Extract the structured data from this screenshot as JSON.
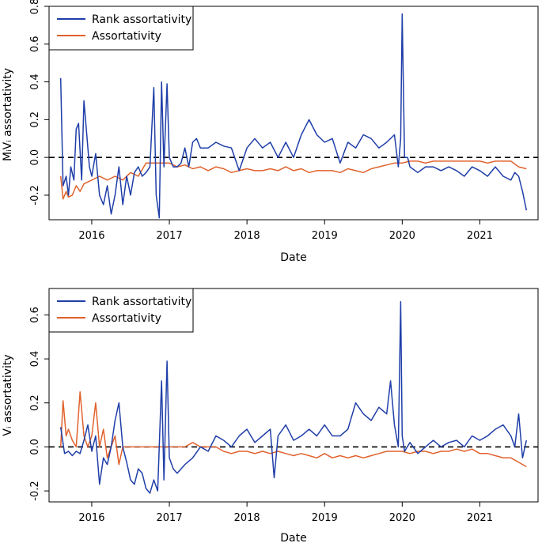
{
  "colors": {
    "rank": "#1f3ea8",
    "assort": "#e0622d",
    "zero_line": "#000000"
  },
  "chart_data": [
    {
      "type": "line",
      "xlabel": "Date",
      "ylabel": "MᵢVᵢ assortativity",
      "xticks": [
        "2016",
        "2017",
        "2018",
        "2019",
        "2020",
        "2021"
      ],
      "xtick_values": [
        2016.0,
        2017.0,
        2018.0,
        2019.0,
        2020.0,
        2021.0
      ],
      "yticks": [
        -0.2,
        0.0,
        0.2,
        0.4,
        0.6,
        0.8
      ],
      "ytick_labels": [
        "-0.2",
        "0.0",
        "0.2",
        "0.4",
        "0.6",
        "0.8"
      ],
      "xlim": [
        2015.45,
        2021.75
      ],
      "ylim": [
        -0.33,
        0.8
      ],
      "reference_line": 0,
      "legend_position": "top-left",
      "series": [
        {
          "name": "Rank assortativity",
          "x": [
            2015.6,
            2015.63,
            2015.67,
            2015.7,
            2015.73,
            2015.77,
            2015.8,
            2015.83,
            2015.87,
            2015.9,
            2015.93,
            2015.97,
            2016.0,
            2016.05,
            2016.1,
            2016.15,
            2016.2,
            2016.25,
            2016.3,
            2016.35,
            2016.4,
            2016.45,
            2016.5,
            2016.55,
            2016.6,
            2016.65,
            2016.7,
            2016.75,
            2016.8,
            2016.83,
            2016.87,
            2016.9,
            2016.93,
            2016.97,
            2017.0,
            2017.05,
            2017.1,
            2017.15,
            2017.2,
            2017.25,
            2017.3,
            2017.35,
            2017.4,
            2017.5,
            2017.6,
            2017.7,
            2017.8,
            2017.9,
            2018.0,
            2018.1,
            2018.2,
            2018.3,
            2018.4,
            2018.5,
            2018.6,
            2018.7,
            2018.8,
            2018.9,
            2019.0,
            2019.1,
            2019.2,
            2019.3,
            2019.4,
            2019.5,
            2019.6,
            2019.7,
            2019.8,
            2019.9,
            2019.95,
            2019.98,
            2020.0,
            2020.03,
            2020.07,
            2020.1,
            2020.2,
            2020.3,
            2020.4,
            2020.5,
            2020.6,
            2020.7,
            2020.8,
            2020.9,
            2021.0,
            2021.1,
            2021.2,
            2021.3,
            2021.4,
            2021.45,
            2021.5,
            2021.55,
            2021.6
          ],
          "y": [
            0.42,
            -0.15,
            -0.1,
            -0.2,
            -0.05,
            -0.12,
            0.15,
            0.18,
            -0.12,
            0.3,
            0.15,
            -0.05,
            -0.1,
            0.02,
            -0.2,
            -0.25,
            -0.15,
            -0.3,
            -0.2,
            -0.05,
            -0.25,
            -0.1,
            -0.2,
            -0.08,
            -0.05,
            -0.1,
            -0.08,
            -0.05,
            0.37,
            -0.2,
            -0.32,
            0.4,
            -0.05,
            0.39,
            0.0,
            -0.05,
            -0.05,
            -0.03,
            0.05,
            -0.05,
            0.08,
            0.1,
            0.05,
            0.05,
            0.08,
            0.06,
            0.05,
            -0.07,
            0.05,
            0.1,
            0.05,
            0.08,
            0.0,
            0.08,
            0.0,
            0.12,
            0.2,
            0.12,
            0.08,
            0.1,
            -0.03,
            0.08,
            0.05,
            0.12,
            0.1,
            0.05,
            0.08,
            0.12,
            -0.05,
            0.1,
            0.76,
            0.0,
            0.0,
            -0.05,
            -0.08,
            -0.05,
            -0.05,
            -0.07,
            -0.05,
            -0.07,
            -0.1,
            -0.05,
            -0.07,
            -0.1,
            -0.05,
            -0.1,
            -0.12,
            -0.08,
            -0.1,
            -0.18,
            -0.28
          ]
        },
        {
          "name": "Assortativity",
          "x": [
            2015.6,
            2015.63,
            2015.67,
            2015.7,
            2015.75,
            2015.8,
            2015.85,
            2015.9,
            2016.0,
            2016.1,
            2016.2,
            2016.3,
            2016.4,
            2016.5,
            2016.6,
            2016.7,
            2016.8,
            2016.9,
            2017.0,
            2017.1,
            2017.2,
            2017.3,
            2017.4,
            2017.5,
            2017.6,
            2017.7,
            2017.8,
            2017.9,
            2018.0,
            2018.1,
            2018.2,
            2018.3,
            2018.4,
            2018.5,
            2018.6,
            2018.7,
            2018.8,
            2018.9,
            2019.0,
            2019.1,
            2019.2,
            2019.3,
            2019.4,
            2019.5,
            2019.6,
            2019.7,
            2019.8,
            2019.9,
            2020.0,
            2020.1,
            2020.2,
            2020.3,
            2020.4,
            2020.5,
            2020.6,
            2020.7,
            2020.8,
            2020.9,
            2021.0,
            2021.1,
            2021.2,
            2021.3,
            2021.4,
            2021.5,
            2021.6
          ],
          "y": [
            -0.1,
            -0.22,
            -0.18,
            -0.21,
            -0.2,
            -0.15,
            -0.18,
            -0.14,
            -0.12,
            -0.1,
            -0.12,
            -0.1,
            -0.12,
            -0.08,
            -0.1,
            -0.03,
            -0.03,
            -0.03,
            -0.03,
            -0.05,
            -0.04,
            -0.06,
            -0.05,
            -0.07,
            -0.05,
            -0.06,
            -0.08,
            -0.07,
            -0.06,
            -0.07,
            -0.07,
            -0.06,
            -0.07,
            -0.05,
            -0.07,
            -0.06,
            -0.08,
            -0.07,
            -0.07,
            -0.07,
            -0.08,
            -0.06,
            -0.07,
            -0.08,
            -0.06,
            -0.05,
            -0.04,
            -0.03,
            -0.03,
            -0.02,
            -0.02,
            -0.03,
            -0.02,
            -0.02,
            -0.02,
            -0.02,
            -0.02,
            -0.02,
            -0.02,
            -0.03,
            -0.02,
            -0.02,
            -0.02,
            -0.05,
            -0.06
          ]
        }
      ]
    },
    {
      "type": "line",
      "xlabel": "Date",
      "ylabel": "Vᵢ assortativity",
      "xticks": [
        "2016",
        "2017",
        "2018",
        "2019",
        "2020",
        "2021"
      ],
      "xtick_values": [
        2016.0,
        2017.0,
        2018.0,
        2019.0,
        2020.0,
        2021.0
      ],
      "yticks": [
        -0.2,
        0.0,
        0.2,
        0.4,
        0.6
      ],
      "ytick_labels": [
        "-0.2",
        "0.0",
        "0.2",
        "0.4",
        "0.6"
      ],
      "xlim": [
        2015.45,
        2021.75
      ],
      "ylim": [
        -0.25,
        0.72
      ],
      "reference_line": 0,
      "legend_position": "top-left",
      "series": [
        {
          "name": "Rank assortativity",
          "x": [
            2015.6,
            2015.65,
            2015.7,
            2015.75,
            2015.8,
            2015.85,
            2015.9,
            2015.95,
            2016.0,
            2016.05,
            2016.1,
            2016.15,
            2016.2,
            2016.25,
            2016.3,
            2016.35,
            2016.4,
            2016.45,
            2016.5,
            2016.55,
            2016.6,
            2016.65,
            2016.7,
            2016.75,
            2016.8,
            2016.85,
            2016.9,
            2016.93,
            2016.97,
            2017.0,
            2017.05,
            2017.1,
            2017.2,
            2017.3,
            2017.4,
            2017.5,
            2017.6,
            2017.7,
            2017.8,
            2017.9,
            2018.0,
            2018.1,
            2018.2,
            2018.3,
            2018.35,
            2018.4,
            2018.5,
            2018.6,
            2018.7,
            2018.8,
            2018.9,
            2019.0,
            2019.1,
            2019.2,
            2019.3,
            2019.4,
            2019.5,
            2019.6,
            2019.7,
            2019.8,
            2019.85,
            2019.9,
            2019.95,
            2019.98,
            2020.0,
            2020.03,
            2020.1,
            2020.2,
            2020.3,
            2020.4,
            2020.5,
            2020.6,
            2020.7,
            2020.8,
            2020.9,
            2021.0,
            2021.1,
            2021.2,
            2021.3,
            2021.4,
            2021.45,
            2021.5,
            2021.55,
            2021.6
          ],
          "y": [
            0.09,
            -0.03,
            -0.02,
            -0.04,
            -0.02,
            -0.03,
            0.03,
            0.1,
            -0.02,
            0.05,
            -0.17,
            -0.05,
            -0.08,
            0.0,
            0.12,
            0.2,
            0.0,
            -0.07,
            -0.15,
            -0.17,
            -0.1,
            -0.12,
            -0.19,
            -0.21,
            -0.15,
            -0.2,
            0.3,
            -0.15,
            0.39,
            -0.05,
            -0.1,
            -0.12,
            -0.08,
            -0.05,
            0.0,
            -0.02,
            0.05,
            0.03,
            0.0,
            0.05,
            0.08,
            0.02,
            0.05,
            0.08,
            -0.14,
            0.05,
            0.1,
            0.03,
            0.05,
            0.08,
            0.05,
            0.1,
            0.05,
            0.05,
            0.08,
            0.2,
            0.15,
            0.12,
            0.18,
            0.15,
            0.3,
            0.1,
            0.0,
            0.66,
            0.05,
            -0.02,
            0.02,
            -0.03,
            0.0,
            0.03,
            0.0,
            0.02,
            0.03,
            0.0,
            0.05,
            0.03,
            0.05,
            0.08,
            0.1,
            0.05,
            0.0,
            0.15,
            -0.05,
            0.03
          ]
        },
        {
          "name": "Assortativity",
          "x": [
            2015.6,
            2015.63,
            2015.67,
            2015.7,
            2015.75,
            2015.8,
            2015.85,
            2015.9,
            2015.95,
            2016.0,
            2016.05,
            2016.1,
            2016.15,
            2016.2,
            2016.25,
            2016.3,
            2016.35,
            2016.4,
            2016.5,
            2016.6,
            2016.7,
            2016.8,
            2016.9,
            2017.0,
            2017.1,
            2017.2,
            2017.3,
            2017.4,
            2017.5,
            2017.6,
            2017.7,
            2017.8,
            2017.9,
            2018.0,
            2018.1,
            2018.2,
            2018.3,
            2018.4,
            2018.5,
            2018.6,
            2018.7,
            2018.8,
            2018.9,
            2019.0,
            2019.1,
            2019.2,
            2019.3,
            2019.4,
            2019.5,
            2019.6,
            2019.7,
            2019.8,
            2019.9,
            2020.0,
            2020.1,
            2020.2,
            2020.3,
            2020.4,
            2020.5,
            2020.6,
            2020.7,
            2020.8,
            2020.9,
            2021.0,
            2021.1,
            2021.2,
            2021.3,
            2021.4,
            2021.5,
            2021.6
          ],
          "y": [
            0.0,
            0.21,
            0.05,
            0.08,
            0.03,
            0.0,
            0.25,
            0.05,
            0.0,
            0.05,
            0.2,
            0.0,
            0.08,
            -0.05,
            0.0,
            0.05,
            -0.08,
            0.0,
            0.0,
            0.0,
            0.0,
            0.0,
            0.0,
            0.0,
            0.0,
            0.0,
            0.02,
            0.0,
            0.0,
            0.0,
            -0.02,
            -0.03,
            -0.02,
            -0.02,
            -0.03,
            -0.02,
            -0.03,
            -0.02,
            -0.03,
            -0.04,
            -0.03,
            -0.04,
            -0.05,
            -0.03,
            -0.05,
            -0.04,
            -0.05,
            -0.04,
            -0.05,
            -0.04,
            -0.03,
            -0.02,
            -0.02,
            -0.02,
            -0.03,
            -0.02,
            -0.02,
            -0.03,
            -0.02,
            -0.02,
            -0.01,
            -0.02,
            -0.01,
            -0.03,
            -0.03,
            -0.04,
            -0.05,
            -0.05,
            -0.07,
            -0.09
          ]
        }
      ]
    }
  ]
}
